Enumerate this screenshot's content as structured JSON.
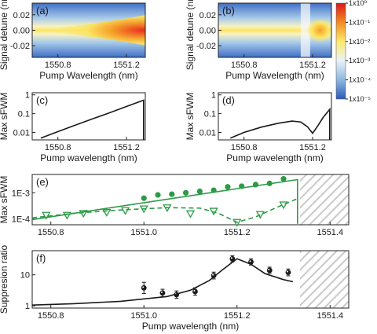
{
  "chart_data": [
    {
      "id": "a",
      "type": "heatmap",
      "panel_label": "(a)",
      "xlabel": "Pump Wavelength (nm)",
      "ylabel": "Signal detune (nm)",
      "xlim": [
        1550.65,
        1551.31
      ],
      "ylim": [
        -0.035,
        0.035
      ],
      "xticks": [
        1550.8,
        1551.2
      ],
      "xtick_labels": [
        "1550.8",
        "1551.2"
      ],
      "yticks": [
        -0.02,
        0.0,
        0.02
      ],
      "ytick_labels": [
        "-0.02",
        "0.00",
        "0.02"
      ],
      "hatched_x_from": 1551.31
    },
    {
      "id": "b",
      "type": "heatmap",
      "panel_label": "(b)",
      "xlabel": "Pump Wavelength (nm)",
      "ylabel": "Signal detune (nm)",
      "xlim": [
        1550.65,
        1551.31
      ],
      "ylim": [
        -0.035,
        0.035
      ],
      "xticks": [
        1550.8,
        1551.2
      ],
      "xtick_labels": [
        "1550.8",
        "1551.2"
      ],
      "yticks": [
        -0.02,
        0.0,
        0.02
      ],
      "ytick_labels": [
        "-0.02",
        "0.00",
        "0.02"
      ],
      "hatched_x_from": 1551.31,
      "colorbar": {
        "scale": "log",
        "range": [
          1e-05,
          1
        ],
        "tick_labels": [
          "1x10⁰",
          "1x10⁻¹",
          "1x10⁻²",
          "1x10⁻³",
          "1x10⁻⁴",
          "1x10⁻⁵"
        ]
      }
    },
    {
      "id": "c",
      "type": "line",
      "panel_label": "(c)",
      "xlabel": "Pump wavelength (nm)",
      "ylabel": "Max sFWM",
      "yscale": "log",
      "xlim": [
        1550.65,
        1551.31
      ],
      "ylim": [
        0.004,
        1.3
      ],
      "xticks": [
        1550.8,
        1551.2
      ],
      "xtick_labels": [
        "1550.8",
        "1551.2"
      ],
      "yticks": [
        0.01,
        0.1,
        1
      ],
      "ytick_labels": [
        "0.01",
        "0.1",
        "1"
      ],
      "hatched_x_from": 1551.31,
      "series": [
        {
          "x": [
            1550.7,
            1550.8,
            1550.9,
            1551.0,
            1551.1,
            1551.2,
            1551.3,
            1551.3
          ],
          "y": [
            0.005,
            0.011,
            0.024,
            0.052,
            0.11,
            0.24,
            0.52,
            0.004
          ]
        }
      ]
    },
    {
      "id": "d",
      "type": "line",
      "panel_label": "(d)",
      "xlabel": "Pump wavelength (nm)",
      "ylabel": "Max sFWM",
      "yscale": "log",
      "xlim": [
        1550.65,
        1551.31
      ],
      "ylim": [
        0.004,
        1.3
      ],
      "xticks": [
        1550.8,
        1551.2
      ],
      "xtick_labels": [
        "1550.8",
        "1551.2"
      ],
      "yticks": [
        0.01,
        0.1,
        1
      ],
      "ytick_labels": [
        "0.01",
        "0.1",
        "1"
      ],
      "hatched_x_from": 1551.31,
      "series": [
        {
          "x": [
            1550.72,
            1550.8,
            1550.9,
            1551.0,
            1551.08,
            1551.13,
            1551.17,
            1551.2,
            1551.23,
            1551.26,
            1551.29,
            1551.3,
            1551.3
          ],
          "y": [
            0.005,
            0.01,
            0.019,
            0.031,
            0.04,
            0.036,
            0.02,
            0.009,
            0.022,
            0.06,
            0.13,
            0.17,
            0.004
          ]
        }
      ]
    },
    {
      "id": "e",
      "type": "scatter",
      "panel_label": "(e)",
      "ylabel": "Max sFWM",
      "yscale": "log",
      "xlim": [
        1550.76,
        1551.44
      ],
      "ylim": [
        6e-05,
        0.005
      ],
      "xticks": [
        1550.8,
        1551.0,
        1551.2,
        1551.4
      ],
      "xtick_labels": [
        "1550.8",
        "1551.0",
        "1551.2",
        "1551.4"
      ],
      "yticks": [
        0.0001,
        0.001
      ],
      "ytick_labels": [
        "1E-4",
        "1E-3"
      ],
      "hatched_x_from": 1551.335,
      "series": [
        {
          "marker": "filled-circle",
          "color": "#2e9a47",
          "x": [
            1551.0,
            1551.03,
            1551.06,
            1551.09,
            1551.12,
            1551.15,
            1551.18,
            1551.21,
            1551.24,
            1551.27,
            1551.3
          ],
          "y": [
            0.00062,
            0.00083,
            0.00088,
            0.001,
            0.00113,
            0.00125,
            0.00168,
            0.00178,
            0.00205,
            0.00228,
            0.0034
          ]
        },
        {
          "marker": "open-triangle",
          "color": "#2e9a47",
          "x": [
            1550.79,
            1550.835,
            1550.87,
            1550.92,
            1550.96,
            1551.0,
            1551.05,
            1551.1,
            1551.15,
            1551.2,
            1551.25,
            1551.3
          ],
          "y": [
            0.00014,
            0.00014,
            0.000165,
            0.00018,
            0.00021,
            0.000245,
            0.00027,
            0.00016,
            0.0002,
            7.5e-05,
            0.00015,
            0.00035
          ]
        },
        {
          "style": "solid-line",
          "color": "#2e9a47",
          "x": [
            1550.76,
            1551.33,
            1551.33
          ],
          "y": [
            9.5e-05,
            0.0032,
            6.5e-05
          ]
        },
        {
          "style": "dashed-line",
          "color": "#2e9a47",
          "x": [
            1550.76,
            1550.85,
            1550.95,
            1551.05,
            1551.12,
            1551.16,
            1551.2,
            1551.24,
            1551.28,
            1551.33
          ],
          "y": [
            0.00011,
            0.000165,
            0.00022,
            0.00027,
            0.00026,
            0.000165,
            7.5e-05,
            0.00012,
            0.00025,
            0.0006
          ]
        }
      ]
    },
    {
      "id": "f",
      "type": "scatter",
      "panel_label": "(f)",
      "xlabel": "Pump wavelength (nm)",
      "ylabel": "Suppresion ratio",
      "yscale": "log",
      "xlim": [
        1550.76,
        1551.44
      ],
      "ylim": [
        0.85,
        60
      ],
      "xticks": [
        1550.8,
        1551.0,
        1551.2,
        1551.4
      ],
      "xtick_labels": [
        "1550.8",
        "1551.0",
        "1551.2",
        "1551.4"
      ],
      "yticks": [
        1,
        10
      ],
      "ytick_labels": [
        "1",
        "10"
      ],
      "hatched_x_from": 1551.335,
      "series": [
        {
          "marker": "filled-circle-errorbar",
          "color": "#1a1a1a",
          "x": [
            1551.0,
            1551.04,
            1551.07,
            1551.11,
            1551.15,
            1551.19,
            1551.23,
            1551.27,
            1551.31
          ],
          "y": [
            3.8,
            2.6,
            2.3,
            2.9,
            9.5,
            33,
            26,
            14,
            12
          ],
          "err": [
            0.18,
            0.12,
            0.12,
            0.12,
            0.11,
            0.1,
            0.1,
            0.1,
            0.11
          ]
        },
        {
          "style": "solid-line",
          "color": "#1a1a1a",
          "x": [
            1550.76,
            1550.85,
            1550.95,
            1551.05,
            1551.1,
            1551.14,
            1551.17,
            1551.2,
            1551.23,
            1551.26,
            1551.3,
            1551.32
          ],
          "y": [
            1.06,
            1.18,
            1.4,
            2.0,
            3.2,
            6.5,
            15,
            33,
            22,
            11,
            7,
            6
          ]
        }
      ]
    }
  ]
}
